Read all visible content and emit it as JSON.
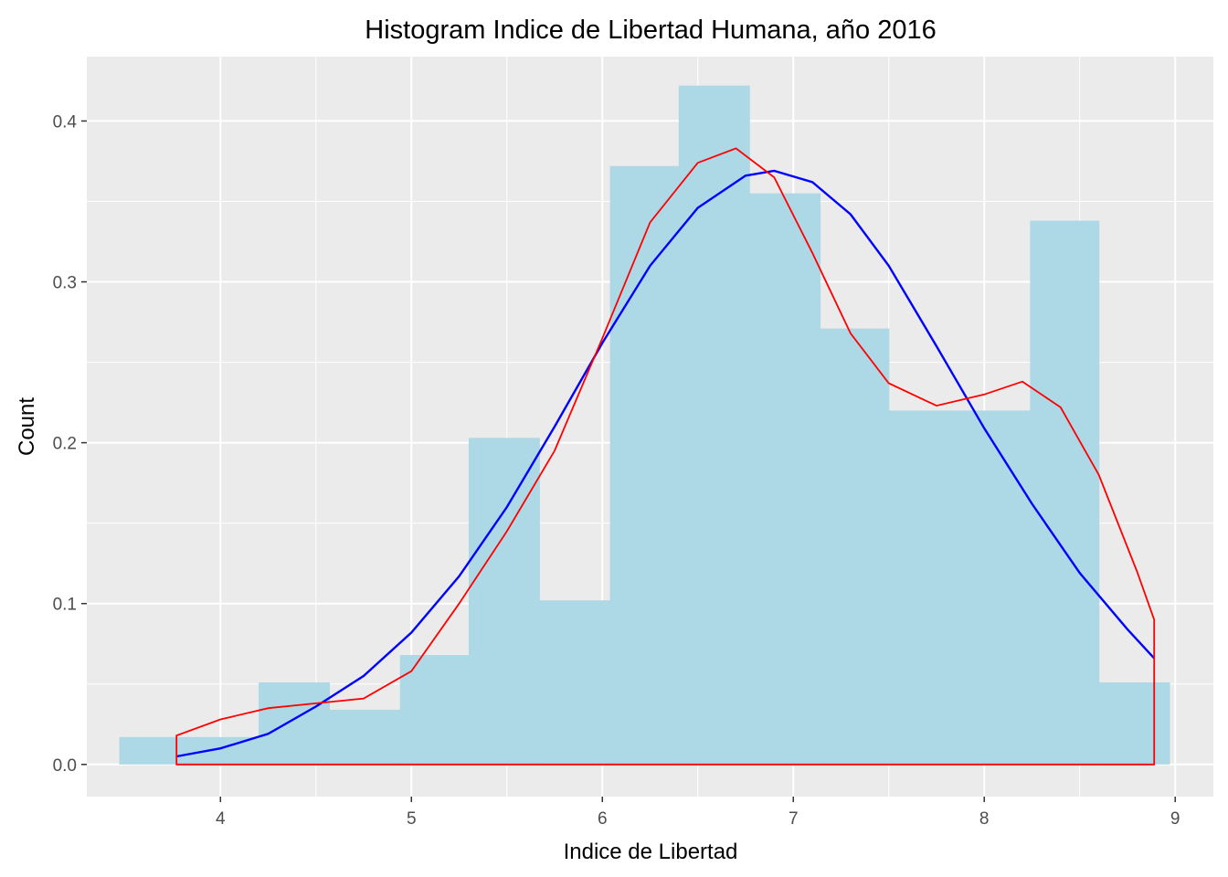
{
  "chart_data": {
    "type": "histogram",
    "title": "Histogram Indice de Libertad Humana, año 2016",
    "xlabel": "Indice de Libertad",
    "ylabel": "Count",
    "xlim": [
      3.3,
      9.2
    ],
    "ylim": [
      -0.02,
      0.44
    ],
    "x_ticks": [
      4,
      5,
      6,
      7,
      8,
      9
    ],
    "y_ticks": [
      0.0,
      0.1,
      0.2,
      0.3,
      0.4
    ],
    "x_tick_labels": [
      "4",
      "5",
      "6",
      "7",
      "8",
      "9"
    ],
    "y_tick_labels": [
      "0.0",
      "0.1",
      "0.2",
      "0.3",
      "0.4"
    ],
    "grid": true,
    "bins": [
      {
        "x0": 3.47,
        "x1": 3.84,
        "value": 0.017
      },
      {
        "x0": 3.84,
        "x1": 4.2,
        "value": 0.017
      },
      {
        "x0": 4.2,
        "x1": 4.57,
        "value": 0.051
      },
      {
        "x0": 4.57,
        "x1": 4.94,
        "value": 0.034
      },
      {
        "x0": 4.94,
        "x1": 5.3,
        "value": 0.068
      },
      {
        "x0": 5.3,
        "x1": 5.67,
        "value": 0.203
      },
      {
        "x0": 5.67,
        "x1": 6.04,
        "value": 0.102
      },
      {
        "x0": 6.04,
        "x1": 6.4,
        "value": 0.372
      },
      {
        "x0": 6.4,
        "x1": 6.77,
        "value": 0.422
      },
      {
        "x0": 6.77,
        "x1": 7.14,
        "value": 0.355
      },
      {
        "x0": 7.14,
        "x1": 7.5,
        "value": 0.271
      },
      {
        "x0": 7.5,
        "x1": 7.87,
        "value": 0.22
      },
      {
        "x0": 7.87,
        "x1": 8.24,
        "value": 0.22
      },
      {
        "x0": 8.24,
        "x1": 8.6,
        "value": 0.338
      },
      {
        "x0": 8.6,
        "x1": 8.97,
        "value": 0.051
      }
    ],
    "bar_color": "#add8e6",
    "density": {
      "color": "#ff0000",
      "x": [
        3.77,
        4.0,
        4.25,
        4.5,
        4.75,
        5.0,
        5.25,
        5.5,
        5.75,
        6.0,
        6.25,
        6.5,
        6.7,
        6.9,
        7.1,
        7.3,
        7.5,
        7.75,
        8.0,
        8.2,
        8.4,
        8.6,
        8.8,
        8.89
      ],
      "y": [
        0.018,
        0.028,
        0.035,
        0.038,
        0.041,
        0.058,
        0.1,
        0.145,
        0.195,
        0.265,
        0.337,
        0.374,
        0.383,
        0.365,
        0.318,
        0.268,
        0.237,
        0.223,
        0.23,
        0.238,
        0.222,
        0.18,
        0.12,
        0.09
      ]
    },
    "normal": {
      "color": "#0000ff",
      "x": [
        3.77,
        4.0,
        4.25,
        4.5,
        4.75,
        5.0,
        5.25,
        5.5,
        5.75,
        6.0,
        6.25,
        6.5,
        6.75,
        6.9,
        7.1,
        7.3,
        7.5,
        7.75,
        8.0,
        8.25,
        8.5,
        8.75,
        8.89
      ],
      "y": [
        0.005,
        0.01,
        0.019,
        0.036,
        0.055,
        0.082,
        0.117,
        0.16,
        0.21,
        0.262,
        0.31,
        0.346,
        0.366,
        0.369,
        0.362,
        0.342,
        0.31,
        0.26,
        0.209,
        0.162,
        0.119,
        0.084,
        0.066
      ]
    }
  }
}
